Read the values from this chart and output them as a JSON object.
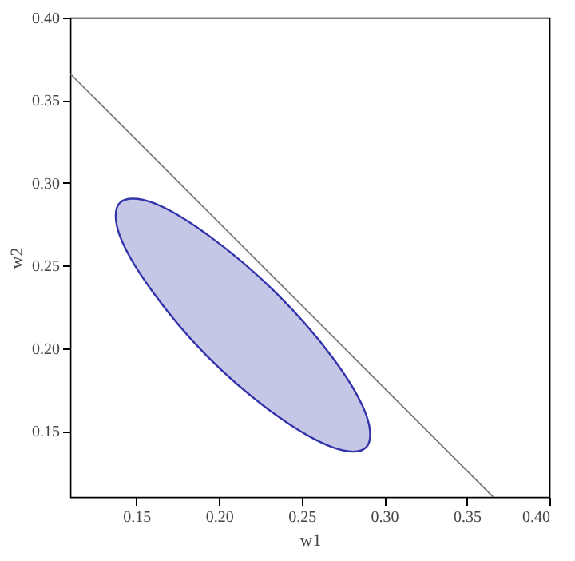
{
  "chart_data": {
    "type": "line",
    "xlabel": "w1",
    "ylabel": "w2",
    "xlim": [
      0.11,
      0.4
    ],
    "ylim": [
      0.11,
      0.4
    ],
    "xticks": [
      {
        "value": 0.15,
        "label": "0.15"
      },
      {
        "value": 0.2,
        "label": "0.20"
      },
      {
        "value": 0.25,
        "label": "0.25"
      },
      {
        "value": 0.3,
        "label": "0.30"
      },
      {
        "value": 0.35,
        "label": "0.35"
      },
      {
        "value": 0.4,
        "label": "0.40"
      }
    ],
    "yticks": [
      {
        "value": 0.15,
        "label": "0.15"
      },
      {
        "value": 0.2,
        "label": "0.20"
      },
      {
        "value": 0.25,
        "label": "0.25"
      },
      {
        "value": 0.3,
        "label": "0.30"
      },
      {
        "value": 0.35,
        "label": "0.35"
      },
      {
        "value": 0.4,
        "label": "0.40"
      }
    ],
    "grid": false,
    "series": [
      {
        "type": "area",
        "color": "#3333aa",
        "x": [
          0.289,
          0.289,
          0.269,
          0.234,
          0.194,
          0.16,
          0.14,
          0.14,
          0.16,
          0.194,
          0.234,
          0.269
        ],
        "values": [
          0.14,
          0.16,
          0.194,
          0.234,
          0.268,
          0.288,
          0.288,
          0.268,
          0.234,
          0.194,
          0.16,
          0.14
        ]
      },
      {
        "color": "#777777",
        "x": [
          0.11,
          0.366
        ],
        "values": [
          0.366,
          0.11
        ]
      }
    ]
  }
}
